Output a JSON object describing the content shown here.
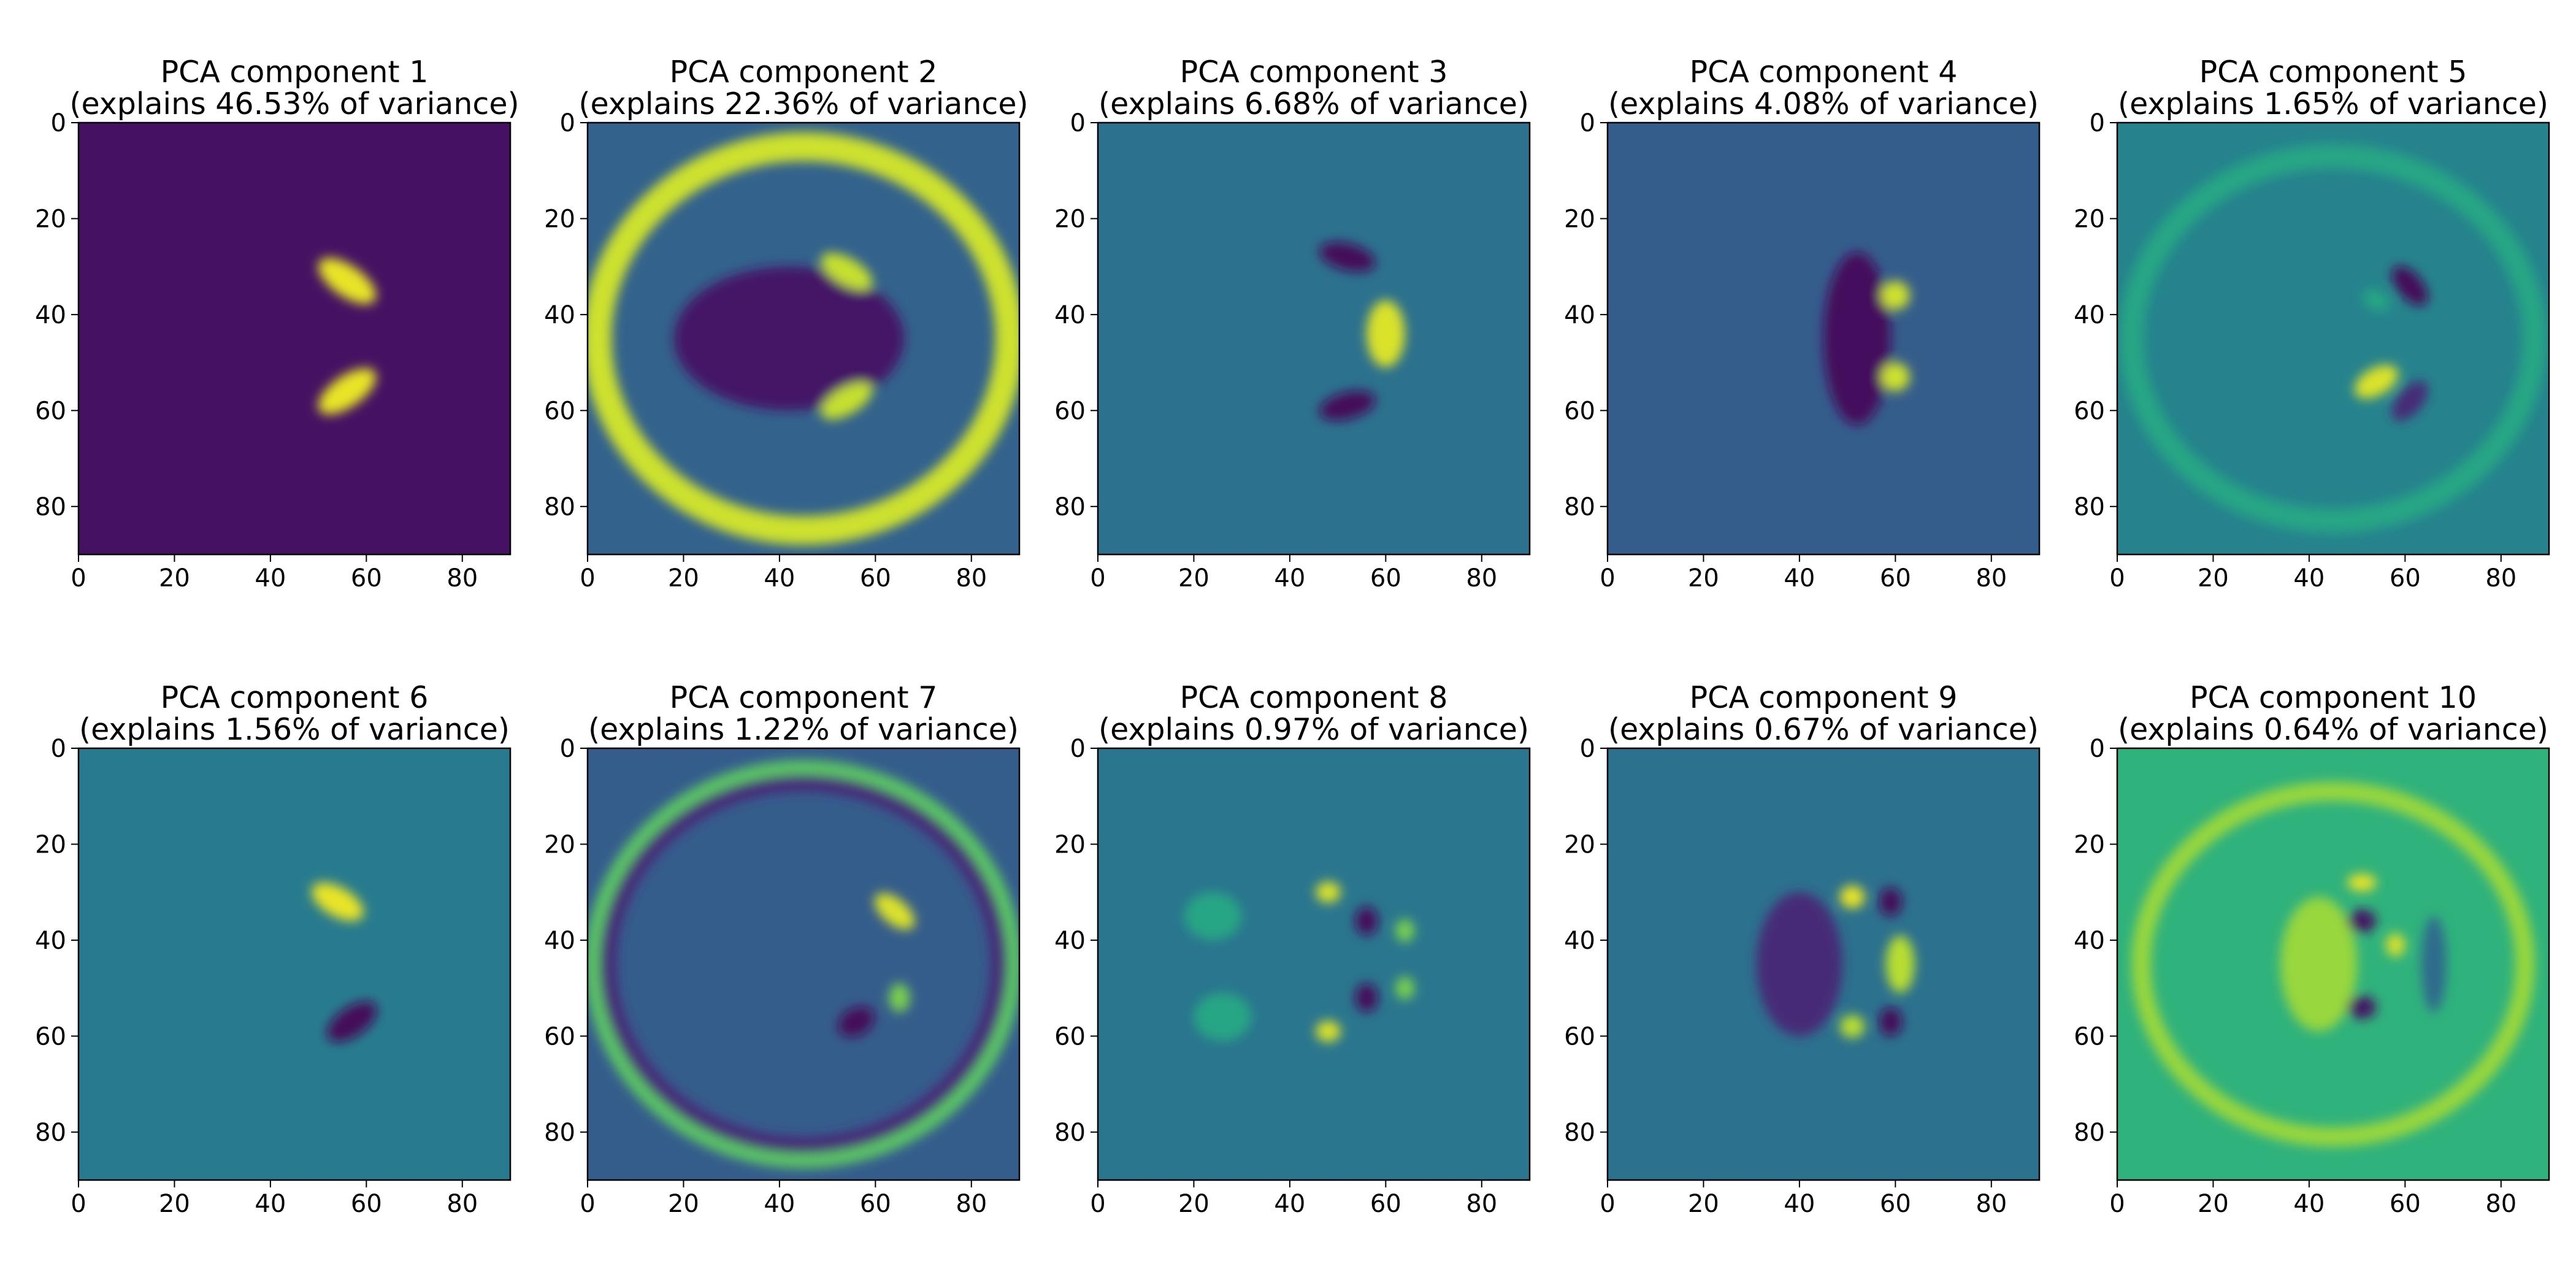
{
  "chart_data": [
    {
      "type": "heatmap",
      "title_line1": "PCA component 1",
      "title_line2": "(explains 46.53% of variance)",
      "component": 1,
      "explained_variance_pct": 46.53,
      "xlim": [
        0,
        90
      ],
      "ylim": [
        90,
        0
      ],
      "xticks": [
        "0",
        "20",
        "40",
        "60",
        "80"
      ],
      "yticks": [
        "0",
        "20",
        "40",
        "60",
        "80"
      ],
      "colormap": "viridis",
      "background_level": 0.05,
      "features": [
        {
          "kind": "blob",
          "x": 56,
          "y": 33,
          "rx": 7,
          "ry": 3.2,
          "angle": 35,
          "level": 0.97
        },
        {
          "kind": "blob",
          "x": 56,
          "y": 56,
          "rx": 7,
          "ry": 3.2,
          "angle": -35,
          "level": 0.97
        }
      ]
    },
    {
      "type": "heatmap",
      "title_line1": "PCA component 2",
      "title_line2": "(explains 22.36% of variance)",
      "component": 2,
      "explained_variance_pct": 22.36,
      "xlim": [
        0,
        90
      ],
      "ylim": [
        90,
        0
      ],
      "xticks": [
        "0",
        "20",
        "40",
        "60",
        "80"
      ],
      "yticks": [
        "0",
        "20",
        "40",
        "60",
        "80"
      ],
      "colormap": "viridis",
      "background_level": 0.32,
      "features": [
        {
          "kind": "ring",
          "x": 45,
          "y": 45,
          "rx": 43,
          "ry": 40,
          "width": 6,
          "level": 0.93
        },
        {
          "kind": "blob",
          "x": 42,
          "y": 45,
          "rx": 24,
          "ry": 15,
          "angle": 0,
          "level": 0.06
        },
        {
          "kind": "blob",
          "x": 54,
          "y": 31,
          "rx": 6,
          "ry": 2.8,
          "angle": 30,
          "level": 0.92
        },
        {
          "kind": "blob",
          "x": 54,
          "y": 58,
          "rx": 6,
          "ry": 2.8,
          "angle": -30,
          "level": 0.92
        }
      ]
    },
    {
      "type": "heatmap",
      "title_line1": "PCA component 3",
      "title_line2": "(explains 6.68% of variance)",
      "component": 3,
      "explained_variance_pct": 6.68,
      "xlim": [
        0,
        90
      ],
      "ylim": [
        90,
        0
      ],
      "xticks": [
        "0",
        "20",
        "40",
        "60",
        "80"
      ],
      "yticks": [
        "0",
        "20",
        "40",
        "60",
        "80"
      ],
      "colormap": "viridis",
      "background_level": 0.38,
      "features": [
        {
          "kind": "blob",
          "x": 52,
          "y": 28,
          "rx": 6,
          "ry": 2.8,
          "angle": 15,
          "level": 0.02
        },
        {
          "kind": "blob",
          "x": 52,
          "y": 59,
          "rx": 6,
          "ry": 2.8,
          "angle": -15,
          "level": 0.02
        },
        {
          "kind": "blob",
          "x": 60,
          "y": 44,
          "rx": 4,
          "ry": 7,
          "angle": 0,
          "level": 0.95
        }
      ]
    },
    {
      "type": "heatmap",
      "title_line1": "PCA component 4",
      "title_line2": "(explains 4.08% of variance)",
      "component": 4,
      "explained_variance_pct": 4.08,
      "xlim": [
        0,
        90
      ],
      "ylim": [
        90,
        0
      ],
      "xticks": [
        "0",
        "20",
        "40",
        "60",
        "80"
      ],
      "yticks": [
        "0",
        "20",
        "40",
        "60",
        "80"
      ],
      "colormap": "viridis",
      "background_level": 0.3,
      "features": [
        {
          "kind": "blob",
          "x": 52,
          "y": 45,
          "rx": 7,
          "ry": 18,
          "angle": 0,
          "level": 0.03
        },
        {
          "kind": "blob",
          "x": 60,
          "y": 36,
          "rx": 3,
          "ry": 3,
          "angle": 0,
          "level": 0.93
        },
        {
          "kind": "blob",
          "x": 60,
          "y": 53,
          "rx": 3,
          "ry": 3,
          "angle": 0,
          "level": 0.93
        }
      ]
    },
    {
      "type": "heatmap",
      "title_line1": "PCA component 5",
      "title_line2": "(explains 1.65% of variance)",
      "component": 5,
      "explained_variance_pct": 1.65,
      "xlim": [
        0,
        90
      ],
      "ylim": [
        90,
        0
      ],
      "xticks": [
        "0",
        "20",
        "40",
        "60",
        "80"
      ],
      "yticks": [
        "0",
        "20",
        "40",
        "60",
        "80"
      ],
      "colormap": "viridis",
      "background_level": 0.45,
      "features": [
        {
          "kind": "ring",
          "x": 45,
          "y": 45,
          "rx": 42,
          "ry": 38,
          "width": 5,
          "level": 0.6
        },
        {
          "kind": "blob",
          "x": 61,
          "y": 34,
          "rx": 5,
          "ry": 2.6,
          "angle": 50,
          "level": 0.02
        },
        {
          "kind": "blob",
          "x": 61,
          "y": 58,
          "rx": 5,
          "ry": 2.6,
          "angle": -50,
          "level": 0.12
        },
        {
          "kind": "blob",
          "x": 54,
          "y": 54,
          "rx": 5,
          "ry": 2.8,
          "angle": -30,
          "level": 0.95
        },
        {
          "kind": "blob",
          "x": 54,
          "y": 37,
          "rx": 3,
          "ry": 2,
          "angle": 30,
          "level": 0.6
        }
      ]
    },
    {
      "type": "heatmap",
      "title_line1": "PCA component 6",
      "title_line2": "(explains 1.56% of variance)",
      "component": 6,
      "explained_variance_pct": 1.56,
      "xlim": [
        0,
        90
      ],
      "ylim": [
        90,
        0
      ],
      "xticks": [
        "0",
        "20",
        "40",
        "60",
        "80"
      ],
      "yticks": [
        "0",
        "20",
        "40",
        "60",
        "80"
      ],
      "colormap": "viridis",
      "background_level": 0.42,
      "features": [
        {
          "kind": "blob",
          "x": 54,
          "y": 32,
          "rx": 6,
          "ry": 3,
          "angle": 30,
          "level": 0.97
        },
        {
          "kind": "blob",
          "x": 57,
          "y": 57,
          "rx": 6,
          "ry": 3,
          "angle": -35,
          "level": 0.02
        }
      ]
    },
    {
      "type": "heatmap",
      "title_line1": "PCA component 7",
      "title_line2": "(explains 1.22% of variance)",
      "component": 7,
      "explained_variance_pct": 1.22,
      "xlim": [
        0,
        90
      ],
      "ylim": [
        90,
        0
      ],
      "xticks": [
        "0",
        "20",
        "40",
        "60",
        "80"
      ],
      "yticks": [
        "0",
        "20",
        "40",
        "60",
        "80"
      ],
      "colormap": "viridis",
      "background_level": 0.3,
      "features": [
        {
          "kind": "ring",
          "x": 45,
          "y": 45,
          "rx": 41,
          "ry": 38,
          "width": 4,
          "level": 0.12
        },
        {
          "kind": "ring",
          "x": 45,
          "y": 45,
          "rx": 44,
          "ry": 41,
          "width": 3,
          "level": 0.75
        },
        {
          "kind": "blob",
          "x": 64,
          "y": 34,
          "rx": 5,
          "ry": 2.6,
          "angle": 40,
          "level": 0.95
        },
        {
          "kind": "blob",
          "x": 56,
          "y": 57,
          "rx": 4,
          "ry": 2.8,
          "angle": -30,
          "level": 0.02
        },
        {
          "kind": "blob",
          "x": 65,
          "y": 52,
          "rx": 2.2,
          "ry": 3,
          "angle": 0,
          "level": 0.8
        }
      ]
    },
    {
      "type": "heatmap",
      "title_line1": "PCA component 8",
      "title_line2": "(explains 0.97% of variance)",
      "component": 8,
      "explained_variance_pct": 0.97,
      "xlim": [
        0,
        90
      ],
      "ylim": [
        90,
        0
      ],
      "xticks": [
        "0",
        "20",
        "40",
        "60",
        "80"
      ],
      "yticks": [
        "0",
        "20",
        "40",
        "60",
        "80"
      ],
      "colormap": "viridis",
      "background_level": 0.4,
      "features": [
        {
          "kind": "blob",
          "x": 24,
          "y": 35,
          "rx": 6,
          "ry": 5,
          "angle": 0,
          "level": 0.6
        },
        {
          "kind": "blob",
          "x": 26,
          "y": 56,
          "rx": 6,
          "ry": 5,
          "angle": 0,
          "level": 0.6
        },
        {
          "kind": "blob",
          "x": 48,
          "y": 30,
          "rx": 2.6,
          "ry": 2.2,
          "angle": 0,
          "level": 0.95
        },
        {
          "kind": "blob",
          "x": 48,
          "y": 59,
          "rx": 2.6,
          "ry": 2.2,
          "angle": 0,
          "level": 0.95
        },
        {
          "kind": "blob",
          "x": 56,
          "y": 36,
          "rx": 2.4,
          "ry": 3,
          "angle": 0,
          "level": 0.03
        },
        {
          "kind": "blob",
          "x": 56,
          "y": 52,
          "rx": 2.4,
          "ry": 3,
          "angle": 0,
          "level": 0.03
        },
        {
          "kind": "blob",
          "x": 64,
          "y": 38,
          "rx": 2,
          "ry": 2.4,
          "angle": 0,
          "level": 0.8
        },
        {
          "kind": "blob",
          "x": 64,
          "y": 50,
          "rx": 2,
          "ry": 2.4,
          "angle": 0,
          "level": 0.8
        }
      ]
    },
    {
      "type": "heatmap",
      "title_line1": "PCA component 9",
      "title_line2": "(explains 0.67% of variance)",
      "component": 9,
      "explained_variance_pct": 0.67,
      "xlim": [
        0,
        90
      ],
      "ylim": [
        90,
        0
      ],
      "xticks": [
        "0",
        "20",
        "40",
        "60",
        "80"
      ],
      "yticks": [
        "0",
        "20",
        "40",
        "60",
        "80"
      ],
      "colormap": "viridis",
      "background_level": 0.38,
      "features": [
        {
          "kind": "blob",
          "x": 40,
          "y": 45,
          "rx": 9,
          "ry": 15,
          "angle": 0,
          "level": 0.12
        },
        {
          "kind": "blob",
          "x": 51,
          "y": 31,
          "rx": 2.6,
          "ry": 2.4,
          "angle": 0,
          "level": 0.97
        },
        {
          "kind": "blob",
          "x": 51,
          "y": 58,
          "rx": 2.6,
          "ry": 2.4,
          "angle": 0,
          "level": 0.9
        },
        {
          "kind": "blob",
          "x": 59,
          "y": 32,
          "rx": 2.4,
          "ry": 3,
          "angle": 0,
          "level": 0.02
        },
        {
          "kind": "blob",
          "x": 59,
          "y": 57,
          "rx": 2.4,
          "ry": 3,
          "angle": 0,
          "level": 0.02
        },
        {
          "kind": "blob",
          "x": 61,
          "y": 45,
          "rx": 3,
          "ry": 6,
          "angle": 0,
          "level": 0.9
        }
      ]
    },
    {
      "type": "heatmap",
      "title_line1": "PCA component 10",
      "title_line2": "(explains 0.64% of variance)",
      "component": 10,
      "explained_variance_pct": 0.64,
      "xlim": [
        0,
        90
      ],
      "ylim": [
        90,
        0
      ],
      "xticks": [
        "0",
        "20",
        "40",
        "60",
        "80"
      ],
      "yticks": [
        "0",
        "20",
        "40",
        "60",
        "80"
      ],
      "colormap": "viridis",
      "background_level": 0.65,
      "features": [
        {
          "kind": "ring",
          "x": 45,
          "y": 45,
          "rx": 40,
          "ry": 36,
          "width": 4,
          "level": 0.85
        },
        {
          "kind": "blob",
          "x": 42,
          "y": 45,
          "rx": 8,
          "ry": 14,
          "angle": 0,
          "level": 0.85
        },
        {
          "kind": "blob",
          "x": 51,
          "y": 36,
          "rx": 3,
          "ry": 2.4,
          "angle": 0,
          "level": 0.05
        },
        {
          "kind": "blob",
          "x": 51,
          "y": 54,
          "rx": 3,
          "ry": 2.4,
          "angle": 0,
          "level": 0.05
        },
        {
          "kind": "blob",
          "x": 51,
          "y": 28,
          "rx": 3,
          "ry": 1.8,
          "angle": 0,
          "level": 0.97
        },
        {
          "kind": "blob",
          "x": 58,
          "y": 41,
          "rx": 2,
          "ry": 2.4,
          "angle": 0,
          "level": 0.95
        },
        {
          "kind": "blob",
          "x": 66,
          "y": 45,
          "rx": 2.6,
          "ry": 10,
          "angle": 0,
          "level": 0.35
        }
      ]
    }
  ]
}
